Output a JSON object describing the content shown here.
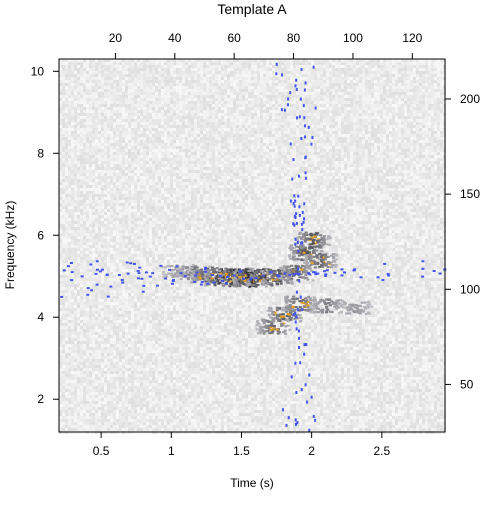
{
  "chart_data": {
    "type": "heatmap",
    "title": "Template A",
    "xlabel": "Time (s)",
    "ylabel": "Frequency (kHz)",
    "xlim": [
      0.2,
      2.95
    ],
    "ylim": [
      1.2,
      10.3
    ],
    "x_ticks": [
      "0.5",
      "1",
      "1.5",
      "2",
      "2.5"
    ],
    "x_tick_values": [
      0.5,
      1.0,
      1.5,
      2.0,
      2.5
    ],
    "y_ticks": [
      "2",
      "4",
      "6",
      "8",
      "10"
    ],
    "y_tick_values": [
      2,
      4,
      6,
      8,
      10
    ],
    "top_axis": {
      "ticks": [
        "20",
        "40",
        "60",
        "80",
        "100",
        "120"
      ],
      "tick_values": [
        20,
        40,
        60,
        80,
        100,
        120
      ],
      "range": [
        1,
        131
      ]
    },
    "right_axis": {
      "ticks": [
        "50",
        "100",
        "150",
        "200"
      ],
      "tick_values": [
        50,
        100,
        150,
        200
      ],
      "range": [
        25,
        221
      ]
    },
    "spectrogram_features": [
      {
        "t": 1.05,
        "f": 5.15,
        "intensity": 0.3
      },
      {
        "t": 1.15,
        "f": 5.1,
        "intensity": 0.5
      },
      {
        "t": 1.25,
        "f": 5.05,
        "intensity": 0.7
      },
      {
        "t": 1.35,
        "f": 5.0,
        "intensity": 0.9
      },
      {
        "t": 1.45,
        "f": 5.0,
        "intensity": 1.0
      },
      {
        "t": 1.55,
        "f": 4.98,
        "intensity": 0.95
      },
      {
        "t": 1.65,
        "f": 5.0,
        "intensity": 0.85
      },
      {
        "t": 1.75,
        "f": 5.02,
        "intensity": 0.7
      },
      {
        "t": 1.88,
        "f": 5.1,
        "intensity": 0.6
      },
      {
        "t": 1.95,
        "f": 5.6,
        "intensity": 0.75
      },
      {
        "t": 2.0,
        "f": 5.9,
        "intensity": 0.7
      },
      {
        "t": 2.05,
        "f": 5.4,
        "intensity": 0.6
      },
      {
        "t": 1.72,
        "f": 3.8,
        "intensity": 0.6
      },
      {
        "t": 1.8,
        "f": 4.1,
        "intensity": 0.7
      },
      {
        "t": 1.9,
        "f": 4.35,
        "intensity": 0.6
      },
      {
        "t": 2.1,
        "f": 4.3,
        "intensity": 0.45
      },
      {
        "t": 2.3,
        "f": 4.25,
        "intensity": 0.3
      }
    ],
    "overlay_color": "#4455ee",
    "highlight_color": "#e8a020",
    "background_color": "#ececec"
  }
}
